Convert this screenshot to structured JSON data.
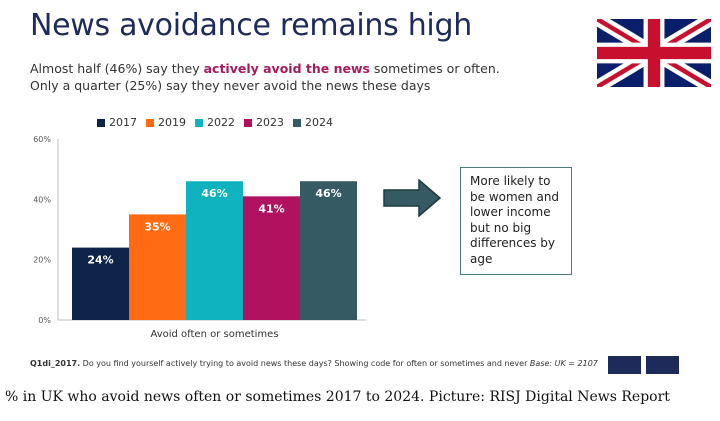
{
  "slide": {
    "title": "News avoidance remains high",
    "subtitle": {
      "before": "Almost half (46%) say they ",
      "highlight": "actively avoid the news",
      "after": " sometimes or often. Only a quarter (25%) say they never avoid the news these days"
    },
    "note_text": "More likely to be women and lower income but no big differences by age",
    "footnote": {
      "code": "Q1di_2017.",
      "question": " Do you find yourself actively trying to avoid news these days?  Showing code for often or sometimes and never ",
      "base": "Base: UK = 2107"
    },
    "flag_icon": "union-jack-flag-icon",
    "arrow_icon": "arrow-right-icon"
  },
  "caption": "% in UK who avoid news often or sometimes 2017 to 2024. Picture: RISJ Digital News Report",
  "chart_data": {
    "type": "bar",
    "categories": [
      "Avoid often or sometimes"
    ],
    "series": [
      {
        "name": "2017",
        "values": [
          24
        ],
        "label": "24%",
        "color": "#0d2347"
      },
      {
        "name": "2019",
        "values": [
          35
        ],
        "label": "35%",
        "color": "#ff6a13"
      },
      {
        "name": "2022",
        "values": [
          46
        ],
        "label": "46%",
        "color": "#0fb3bf"
      },
      {
        "name": "2023",
        "values": [
          41
        ],
        "label": "41%",
        "color": "#b0125f"
      },
      {
        "name": "2024",
        "values": [
          46
        ],
        "label": "46%",
        "color": "#355a63"
      }
    ],
    "yticks": [
      "0%",
      "20%",
      "40%",
      "60%"
    ],
    "ylim": [
      0,
      60
    ],
    "grid": false,
    "legend": "top"
  }
}
